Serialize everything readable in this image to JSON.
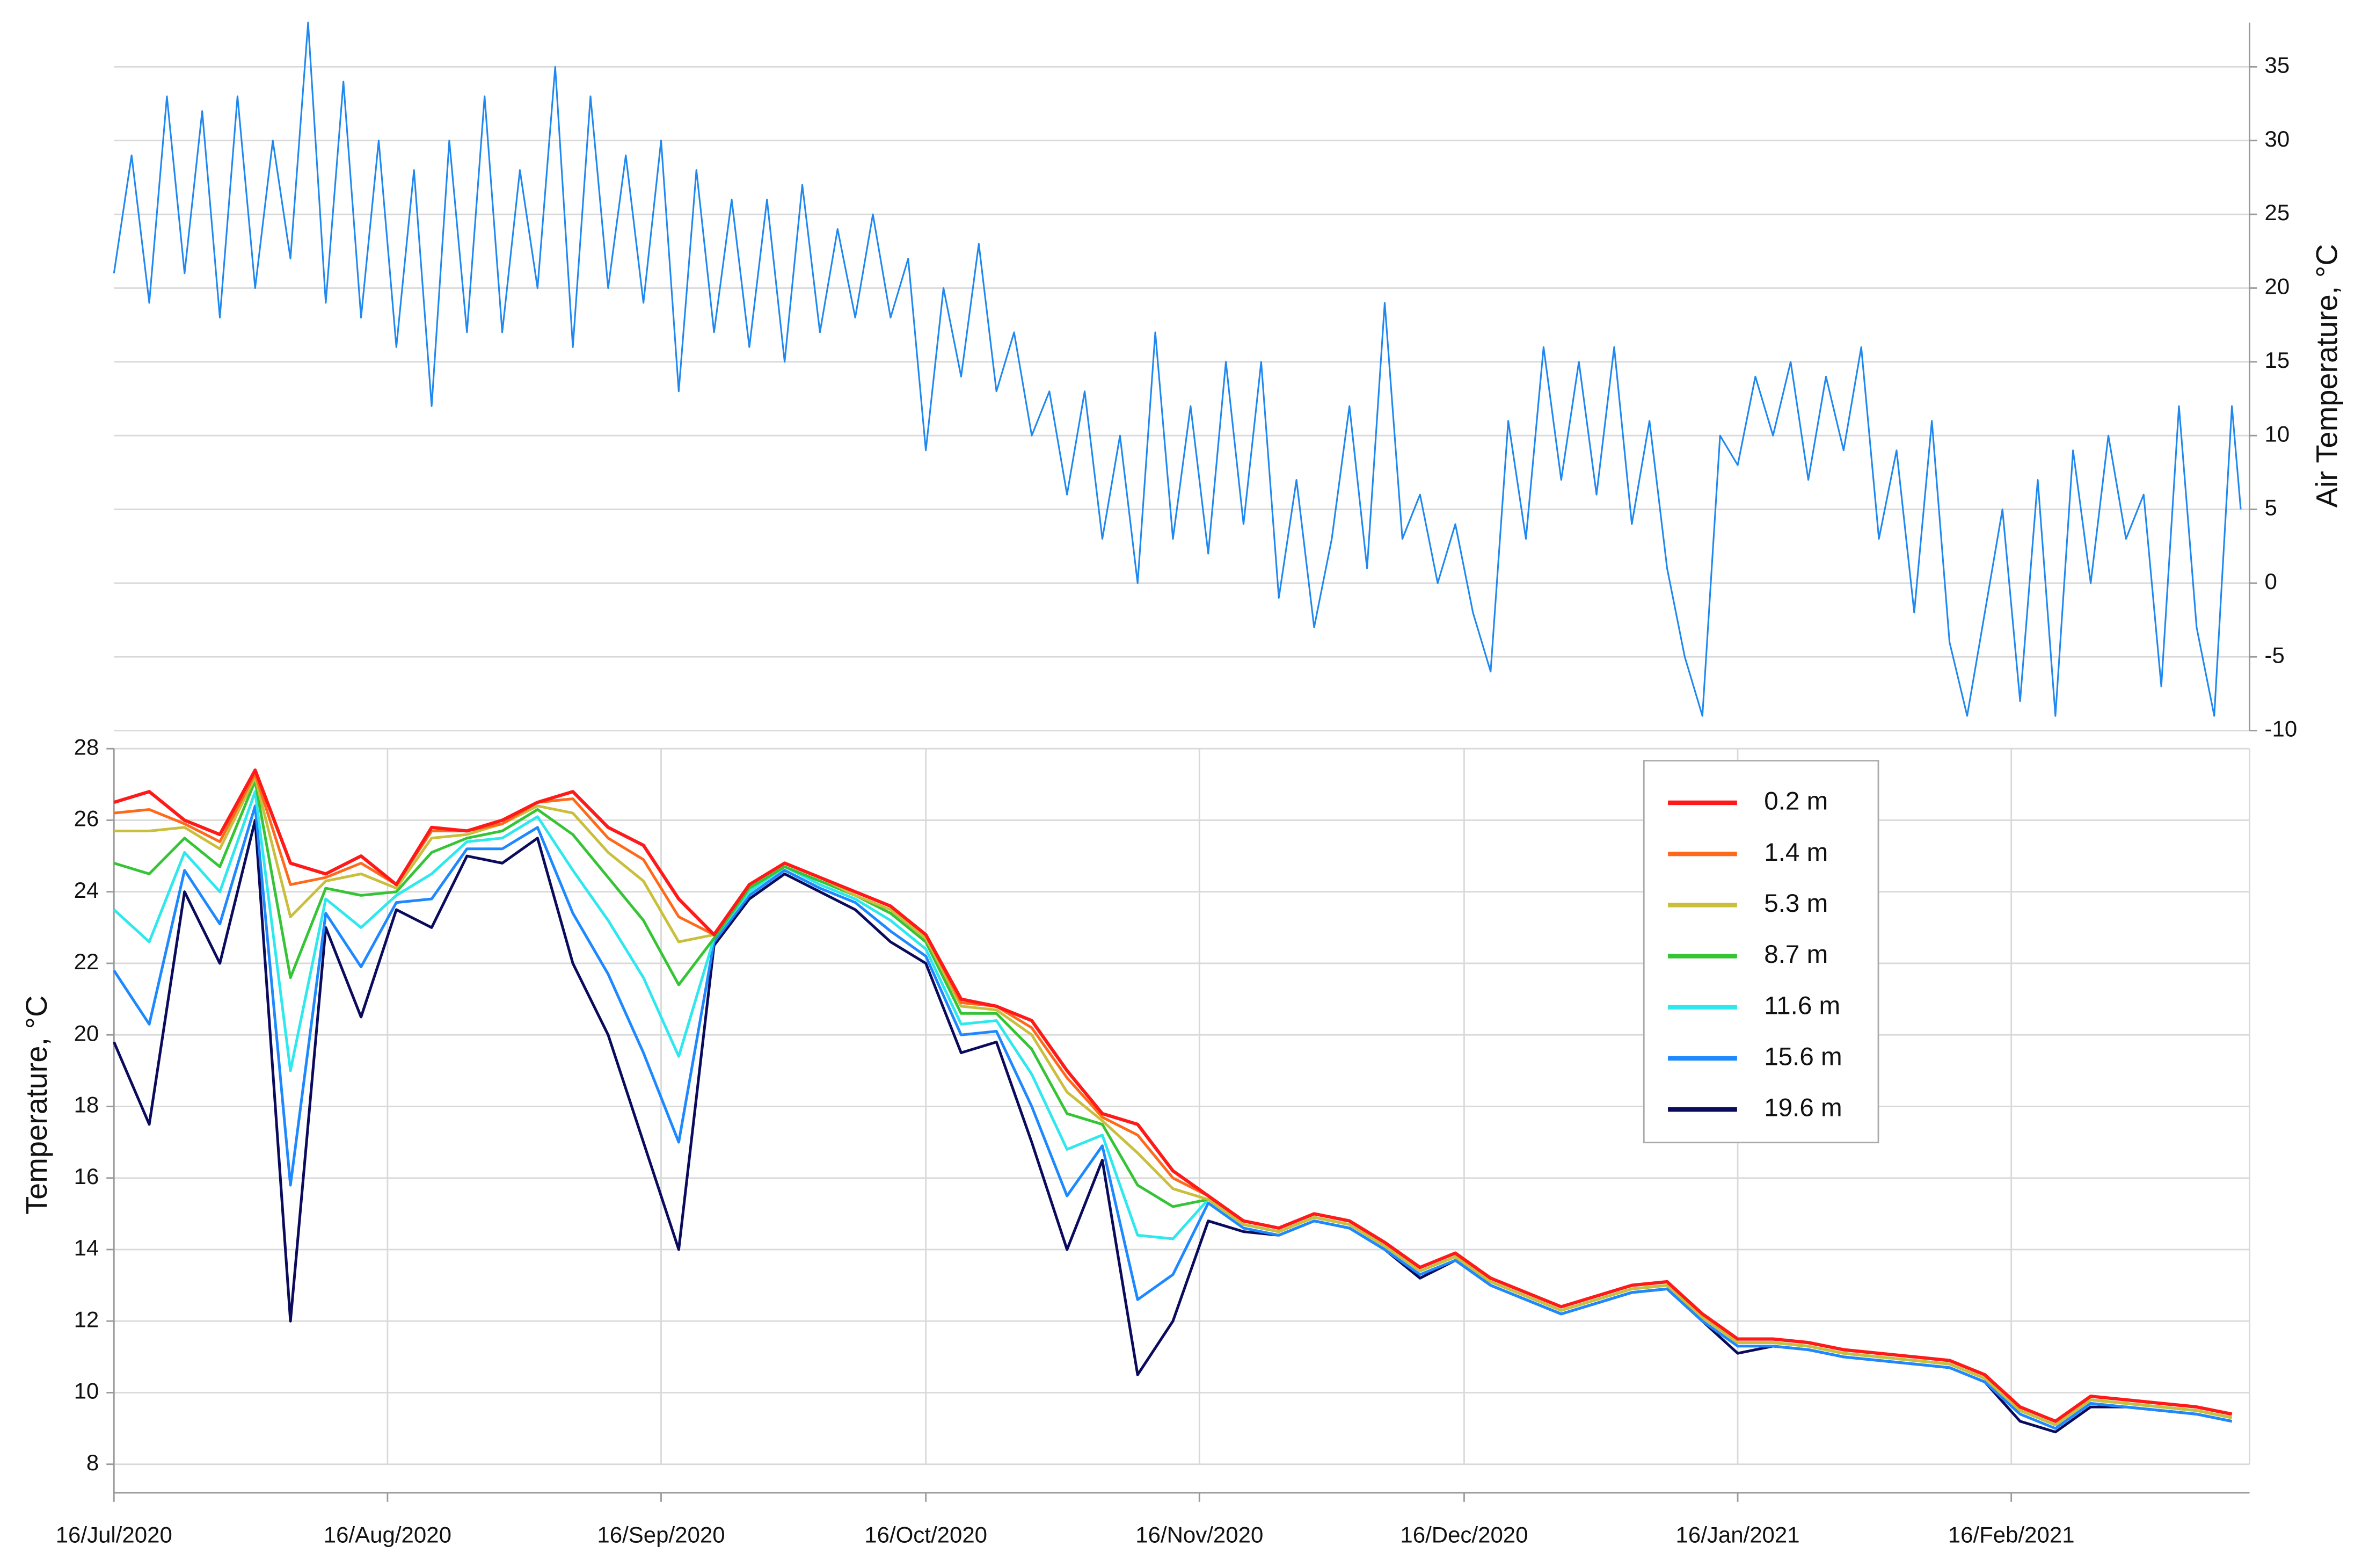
{
  "chart_data": [
    {
      "type": "line",
      "ylabel": "Air Temperature, °C",
      "yaxis_side": "right",
      "color": "#1e88f0",
      "grid": true,
      "xlim": [
        "2020-07-16",
        "2021-03-15"
      ],
      "ylim": [
        -10,
        38
      ],
      "yticks": [
        -10,
        -5,
        0,
        5,
        10,
        15,
        20,
        25,
        30,
        35
      ],
      "x": [
        "2020-07-16",
        "2020-07-18",
        "2020-07-20",
        "2020-07-22",
        "2020-07-24",
        "2020-07-26",
        "2020-07-28",
        "2020-07-30",
        "2020-08-01",
        "2020-08-03",
        "2020-08-05",
        "2020-08-07",
        "2020-08-09",
        "2020-08-11",
        "2020-08-13",
        "2020-08-15",
        "2020-08-17",
        "2020-08-19",
        "2020-08-21",
        "2020-08-23",
        "2020-08-25",
        "2020-08-27",
        "2020-08-29",
        "2020-08-31",
        "2020-09-02",
        "2020-09-04",
        "2020-09-06",
        "2020-09-08",
        "2020-09-10",
        "2020-09-12",
        "2020-09-14",
        "2020-09-16",
        "2020-09-18",
        "2020-09-20",
        "2020-09-22",
        "2020-09-24",
        "2020-09-26",
        "2020-09-28",
        "2020-09-30",
        "2020-10-02",
        "2020-10-04",
        "2020-10-06",
        "2020-10-08",
        "2020-10-10",
        "2020-10-12",
        "2020-10-14",
        "2020-10-16",
        "2020-10-18",
        "2020-10-20",
        "2020-10-22",
        "2020-10-24",
        "2020-10-26",
        "2020-10-28",
        "2020-10-30",
        "2020-11-01",
        "2020-11-03",
        "2020-11-05",
        "2020-11-07",
        "2020-11-09",
        "2020-11-11",
        "2020-11-13",
        "2020-11-15",
        "2020-11-17",
        "2020-11-19",
        "2020-11-21",
        "2020-11-23",
        "2020-11-25",
        "2020-11-27",
        "2020-11-29",
        "2020-12-01",
        "2020-12-03",
        "2020-12-05",
        "2020-12-07",
        "2020-12-09",
        "2020-12-11",
        "2020-12-13",
        "2020-12-15",
        "2020-12-17",
        "2020-12-19",
        "2020-12-21",
        "2020-12-23",
        "2020-12-25",
        "2020-12-27",
        "2020-12-29",
        "2020-12-31",
        "2021-01-02",
        "2021-01-04",
        "2021-01-06",
        "2021-01-08",
        "2021-01-10",
        "2021-01-12",
        "2021-01-14",
        "2021-01-16",
        "2021-01-18",
        "2021-01-20",
        "2021-01-22",
        "2021-01-24",
        "2021-01-26",
        "2021-01-28",
        "2021-01-30",
        "2021-02-01",
        "2021-02-03",
        "2021-02-05",
        "2021-02-07",
        "2021-02-09",
        "2021-02-11",
        "2021-02-13",
        "2021-02-15",
        "2021-02-17",
        "2021-02-19",
        "2021-02-21",
        "2021-02-23",
        "2021-02-25",
        "2021-02-27",
        "2021-03-01",
        "2021-03-03",
        "2021-03-05",
        "2021-03-07",
        "2021-03-09",
        "2021-03-11",
        "2021-03-13",
        "2021-03-14"
      ],
      "values": [
        21,
        29,
        19,
        33,
        21,
        32,
        18,
        33,
        20,
        30,
        22,
        38,
        19,
        34,
        18,
        30,
        16,
        28,
        12,
        30,
        17,
        33,
        17,
        28,
        20,
        35,
        16,
        33,
        20,
        29,
        19,
        30,
        13,
        28,
        17,
        26,
        16,
        26,
        15,
        27,
        17,
        24,
        18,
        25,
        18,
        22,
        9,
        20,
        14,
        23,
        13,
        17,
        10,
        13,
        6,
        13,
        3,
        10,
        0,
        17,
        3,
        12,
        2,
        15,
        4,
        15,
        -1,
        7,
        -3,
        3,
        12,
        1,
        19,
        3,
        6,
        0,
        4,
        -2,
        -6,
        11,
        3,
        16,
        7,
        15,
        6,
        16,
        4,
        11,
        1,
        -5,
        -9,
        10,
        8,
        14,
        10,
        15,
        7,
        14,
        9,
        16,
        3,
        9,
        -2,
        11,
        -4,
        -9,
        -2,
        5,
        -8,
        7,
        -9,
        9,
        0,
        10,
        3,
        6,
        -7,
        12,
        -3,
        -9,
        12,
        5
      ]
    },
    {
      "type": "line",
      "ylabel": "Temperature, °C",
      "grid": true,
      "xgrid": true,
      "legend": "upper-right",
      "xlim": [
        "2020-07-16",
        "2021-03-15"
      ],
      "xticks": [
        {
          "value": "2020-07-16",
          "label": "16/Jul/2020"
        },
        {
          "value": "2020-08-16",
          "label": "16/Aug/2020"
        },
        {
          "value": "2020-09-16",
          "label": "16/Sep/2020"
        },
        {
          "value": "2020-10-16",
          "label": "16/Oct/2020"
        },
        {
          "value": "2020-11-16",
          "label": "16/Nov/2020"
        },
        {
          "value": "2020-12-16",
          "label": "16/Dec/2020"
        },
        {
          "value": "2021-01-16",
          "label": "16/Jan/2021"
        },
        {
          "value": "2021-02-16",
          "label": "16/Feb/2021"
        }
      ],
      "ylim": [
        7.2,
        28
      ],
      "yticks": [
        8,
        10,
        12,
        14,
        16,
        18,
        20,
        22,
        24,
        26,
        28
      ],
      "x": [
        "2020-07-16",
        "2020-07-20",
        "2020-07-24",
        "2020-07-28",
        "2020-08-01",
        "2020-08-05",
        "2020-08-09",
        "2020-08-13",
        "2020-08-17",
        "2020-08-21",
        "2020-08-25",
        "2020-08-29",
        "2020-09-02",
        "2020-09-06",
        "2020-09-10",
        "2020-09-14",
        "2020-09-18",
        "2020-09-22",
        "2020-09-26",
        "2020-09-30",
        "2020-10-04",
        "2020-10-08",
        "2020-10-12",
        "2020-10-16",
        "2020-10-20",
        "2020-10-24",
        "2020-10-28",
        "2020-11-01",
        "2020-11-05",
        "2020-11-09",
        "2020-11-13",
        "2020-11-17",
        "2020-11-21",
        "2020-11-25",
        "2020-11-29",
        "2020-12-03",
        "2020-12-07",
        "2020-12-11",
        "2020-12-15",
        "2020-12-19",
        "2020-12-23",
        "2020-12-27",
        "2020-12-31",
        "2021-01-04",
        "2021-01-08",
        "2021-01-12",
        "2021-01-16",
        "2021-01-20",
        "2021-01-24",
        "2021-01-28",
        "2021-02-01",
        "2021-02-05",
        "2021-02-09",
        "2021-02-13",
        "2021-02-17",
        "2021-02-21",
        "2021-02-25",
        "2021-03-01",
        "2021-03-05",
        "2021-03-09",
        "2021-03-13"
      ],
      "series": [
        {
          "name": "0.2 m",
          "color": "#ff1a1a",
          "values": [
            26.5,
            26.8,
            26.0,
            25.6,
            27.4,
            24.8,
            24.5,
            25.0,
            24.2,
            25.8,
            25.7,
            26.0,
            26.5,
            26.8,
            25.8,
            25.3,
            23.8,
            22.8,
            24.2,
            24.8,
            24.4,
            24.0,
            23.6,
            22.8,
            21.0,
            20.8,
            20.4,
            19.0,
            17.8,
            17.5,
            16.2,
            15.5,
            14.8,
            14.6,
            15.0,
            14.8,
            14.2,
            13.5,
            13.9,
            13.2,
            12.8,
            12.4,
            12.7,
            13.0,
            13.1,
            12.2,
            11.5,
            11.5,
            11.4,
            11.2,
            11.1,
            11.0,
            10.9,
            10.5,
            9.6,
            9.2,
            9.9,
            9.8,
            9.7,
            9.6,
            9.4
          ]
        },
        {
          "name": "1.4 m",
          "color": "#ff6a1a",
          "values": [
            26.2,
            26.3,
            25.9,
            25.4,
            27.3,
            24.2,
            24.4,
            24.8,
            24.2,
            25.7,
            25.7,
            25.9,
            26.5,
            26.6,
            25.5,
            24.9,
            23.3,
            22.8,
            24.2,
            24.8,
            24.4,
            24.0,
            23.6,
            22.8,
            20.9,
            20.8,
            20.2,
            18.8,
            17.7,
            17.2,
            16.0,
            15.5,
            14.8,
            14.6,
            15.0,
            14.8,
            14.2,
            13.5,
            13.9,
            13.2,
            12.8,
            12.4,
            12.7,
            13.0,
            13.1,
            12.2,
            11.5,
            11.5,
            11.4,
            11.2,
            11.1,
            11.0,
            10.9,
            10.5,
            9.6,
            9.2,
            9.9,
            9.8,
            9.7,
            9.6,
            9.4
          ]
        },
        {
          "name": "5.3 m",
          "color": "#c9bf3c",
          "values": [
            25.7,
            25.7,
            25.8,
            25.2,
            27.2,
            23.3,
            24.3,
            24.5,
            24.1,
            25.5,
            25.6,
            25.9,
            26.4,
            26.2,
            25.1,
            24.3,
            22.6,
            22.8,
            24.2,
            24.8,
            24.4,
            23.9,
            23.5,
            22.7,
            20.8,
            20.7,
            20.0,
            18.4,
            17.6,
            16.7,
            15.7,
            15.4,
            14.7,
            14.5,
            14.9,
            14.7,
            14.1,
            13.4,
            13.8,
            13.1,
            12.7,
            12.3,
            12.6,
            12.9,
            13.0,
            12.1,
            11.4,
            11.4,
            11.3,
            11.1,
            11.0,
            10.9,
            10.8,
            10.4,
            9.5,
            9.1,
            9.8,
            9.7,
            9.6,
            9.5,
            9.3
          ]
        },
        {
          "name": "8.7 m",
          "color": "#35c435",
          "values": [
            24.8,
            24.5,
            25.5,
            24.7,
            27.1,
            21.6,
            24.1,
            23.9,
            24.0,
            25.1,
            25.5,
            25.7,
            26.3,
            25.6,
            24.4,
            23.2,
            21.4,
            22.7,
            24.1,
            24.7,
            24.3,
            23.9,
            23.4,
            22.6,
            20.6,
            20.6,
            19.6,
            17.8,
            17.5,
            15.8,
            15.2,
            15.4,
            14.7,
            14.5,
            14.9,
            14.7,
            14.1,
            13.4,
            13.8,
            13.1,
            12.7,
            12.3,
            12.6,
            12.9,
            13.0,
            12.1,
            11.4,
            11.4,
            11.3,
            11.1,
            11.0,
            10.9,
            10.8,
            10.4,
            9.5,
            9.1,
            9.8,
            9.7,
            9.6,
            9.5,
            9.3
          ]
        },
        {
          "name": "11.6 m",
          "color": "#2ee8ee",
          "values": [
            23.5,
            22.6,
            25.1,
            24.0,
            26.8,
            19.0,
            23.8,
            23.0,
            23.9,
            24.5,
            25.4,
            25.5,
            26.1,
            24.6,
            23.2,
            21.6,
            19.4,
            22.7,
            24.0,
            24.7,
            24.2,
            23.8,
            23.2,
            22.4,
            20.3,
            20.4,
            18.9,
            16.8,
            17.2,
            14.4,
            14.3,
            15.4,
            14.7,
            14.5,
            14.9,
            14.7,
            14.1,
            13.4,
            13.8,
            13.1,
            12.7,
            12.3,
            12.6,
            12.9,
            13.0,
            12.1,
            11.4,
            11.4,
            11.3,
            11.1,
            11.0,
            10.9,
            10.8,
            10.4,
            9.5,
            9.1,
            9.8,
            9.7,
            9.6,
            9.5,
            9.3
          ]
        },
        {
          "name": "15.6 m",
          "color": "#1e88ff",
          "values": [
            21.8,
            20.3,
            24.6,
            23.1,
            26.4,
            15.8,
            23.4,
            21.9,
            23.7,
            23.8,
            25.2,
            25.2,
            25.8,
            23.4,
            21.7,
            19.5,
            17.0,
            22.6,
            23.9,
            24.6,
            24.1,
            23.7,
            22.9,
            22.2,
            20.0,
            20.1,
            18.0,
            15.5,
            16.9,
            12.6,
            13.3,
            15.3,
            14.6,
            14.4,
            14.8,
            14.6,
            14.0,
            13.3,
            13.7,
            13.0,
            12.6,
            12.2,
            12.5,
            12.8,
            12.9,
            12.0,
            11.3,
            11.3,
            11.2,
            11.0,
            10.9,
            10.8,
            10.7,
            10.3,
            9.4,
            9.0,
            9.7,
            9.6,
            9.5,
            9.4,
            9.2
          ]
        },
        {
          "name": "19.6 m",
          "color": "#0b0b5e",
          "values": [
            19.8,
            17.5,
            24.0,
            22.0,
            26.0,
            12.0,
            23.0,
            20.5,
            23.5,
            23.0,
            25.0,
            24.8,
            25.5,
            22.0,
            20.0,
            17.0,
            14.0,
            22.5,
            23.8,
            24.5,
            24.0,
            23.5,
            22.6,
            22.0,
            19.5,
            19.8,
            17.0,
            14.0,
            16.5,
            10.5,
            12.0,
            14.8,
            14.5,
            14.4,
            14.8,
            14.6,
            14.0,
            13.2,
            13.7,
            13.0,
            12.6,
            12.2,
            12.5,
            12.8,
            12.9,
            12.0,
            11.1,
            11.3,
            11.2,
            11.0,
            10.9,
            10.8,
            10.7,
            10.3,
            9.2,
            8.9,
            9.6,
            9.6,
            9.5,
            9.4,
            9.2
          ]
        }
      ]
    }
  ]
}
